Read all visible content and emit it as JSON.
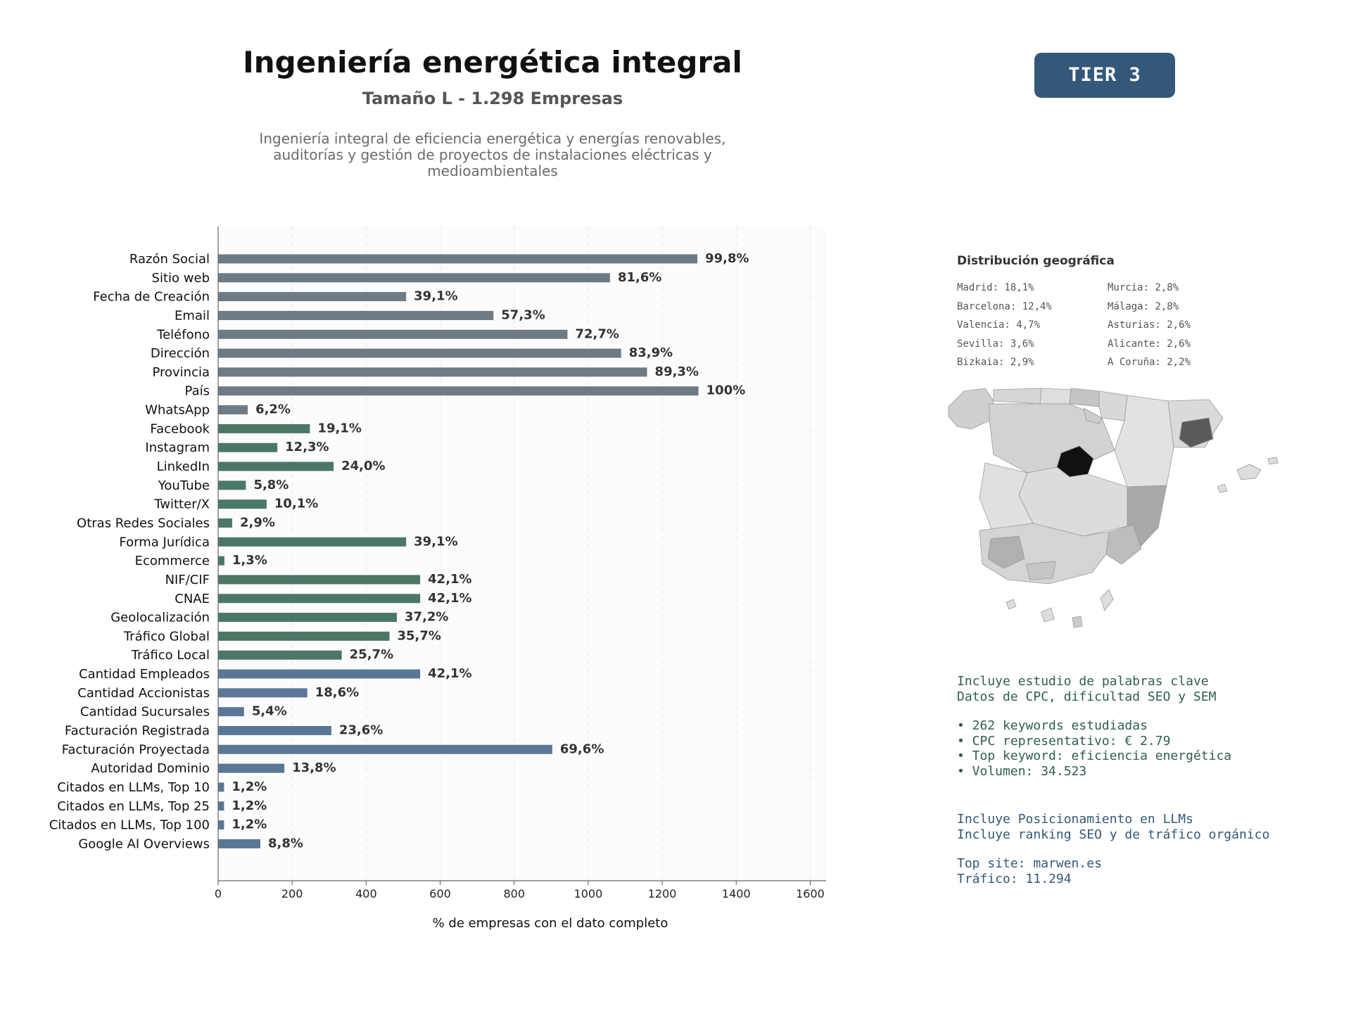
{
  "header": {
    "title": "Ingeniería energética integral",
    "subtitle": "Tamaño L - 1.298 Empresas",
    "description_lines": [
      "Ingeniería integral de eficiencia energética y energías renovables,",
      "auditorías y gestión de proyectos de instalaciones eléctricas y",
      "medioambientales"
    ],
    "tier_badge": "TIER 3"
  },
  "colors": {
    "group_basic": "#6e7b85",
    "group_digital": "#4b7866",
    "group_business": "#5a7896",
    "tier_badge": "#34587a"
  },
  "chart_data": {
    "type": "bar",
    "orientation": "horizontal",
    "xlabel": "% de empresas con el dato completo",
    "xlim": [
      0,
      1620
    ],
    "xticks": [
      0,
      200,
      400,
      600,
      800,
      1000,
      1200,
      1400,
      1600
    ],
    "grid": "vertical dashed",
    "categories": [
      "Razón Social",
      "Sitio web",
      "Fecha de Creación",
      "Email",
      "Teléfono",
      "Dirección",
      "Provincia",
      "País",
      "WhatsApp",
      "Facebook",
      "Instagram",
      "LinkedIn",
      "YouTube",
      "Twitter/X",
      "Otras Redes Sociales",
      "Forma Jurídica",
      "Ecommerce",
      "NIF/CIF",
      "CNAE",
      "Geolocalización",
      "Tráfico Global",
      "Tráfico Local",
      "Cantidad Empleados",
      "Cantidad Accionistas",
      "Cantidad Sucursales",
      "Facturación Registrada",
      "Facturación Proyectada",
      "Autoridad Dominio",
      "Citados en LLMs, Top 10",
      "Citados en LLMs, Top 25",
      "Citados en LLMs, Top 100",
      "Google AI Overviews"
    ],
    "values": [
      1295,
      1059,
      508,
      744,
      944,
      1089,
      1159,
      1298,
      80,
      248,
      160,
      312,
      75,
      131,
      38,
      508,
      17,
      546,
      546,
      483,
      463,
      334,
      546,
      241,
      70,
      306,
      903,
      179,
      16,
      16,
      16,
      114
    ],
    "value_labels": [
      "99,8%",
      "81,6%",
      "39,1%",
      "57,3%",
      "72,7%",
      "83,9%",
      "89,3%",
      "100%",
      "6,2%",
      "19,1%",
      "12,3%",
      "24,0%",
      "5,8%",
      "10,1%",
      "2,9%",
      "39,1%",
      "1,3%",
      "42,1%",
      "42,1%",
      "37,2%",
      "35,7%",
      "25,7%",
      "42,1%",
      "18,6%",
      "5,4%",
      "23,6%",
      "69,6%",
      "13,8%",
      "1,2%",
      "1,2%",
      "1,2%",
      "8,8%"
    ],
    "groups": [
      "basic",
      "basic",
      "basic",
      "basic",
      "basic",
      "basic",
      "basic",
      "basic",
      "basic",
      "digital",
      "digital",
      "digital",
      "digital",
      "digital",
      "digital",
      "digital",
      "digital",
      "digital",
      "digital",
      "digital",
      "digital",
      "digital",
      "business",
      "business",
      "business",
      "business",
      "business",
      "business",
      "business",
      "business",
      "business",
      "business"
    ]
  },
  "geo": {
    "title": "Distribución geográfica",
    "left": [
      "Madrid: 18,1%",
      "Barcelona: 12,4%",
      "Valencia: 4,7%",
      "Sevilla: 3,6%",
      "Bizkaia: 2,9%"
    ],
    "right": [
      "Murcia: 2,8%",
      "Málaga: 2,8%",
      "Asturias: 2,6%",
      "Alicante: 2,6%",
      "A Coruña: 2,2%"
    ]
  },
  "keywords": {
    "line1": "Incluye estudio de palabras clave",
    "line2": "Datos de CPC, dificultad SEO y SEM",
    "bullet1": "• 262 keywords estudiadas",
    "bullet2": "• CPC representativo: € 2.79",
    "bullet3": "• Top keyword: eficiencia energética",
    "bullet4": "• Volumen: 34.523"
  },
  "llm": {
    "line1": "Incluye Posicionamiento en LLMs",
    "line2": "Incluye ranking SEO y de tráfico orgánico",
    "top_site": "Top site: marwen.es",
    "traffic": "Tráfico: 11.294"
  }
}
